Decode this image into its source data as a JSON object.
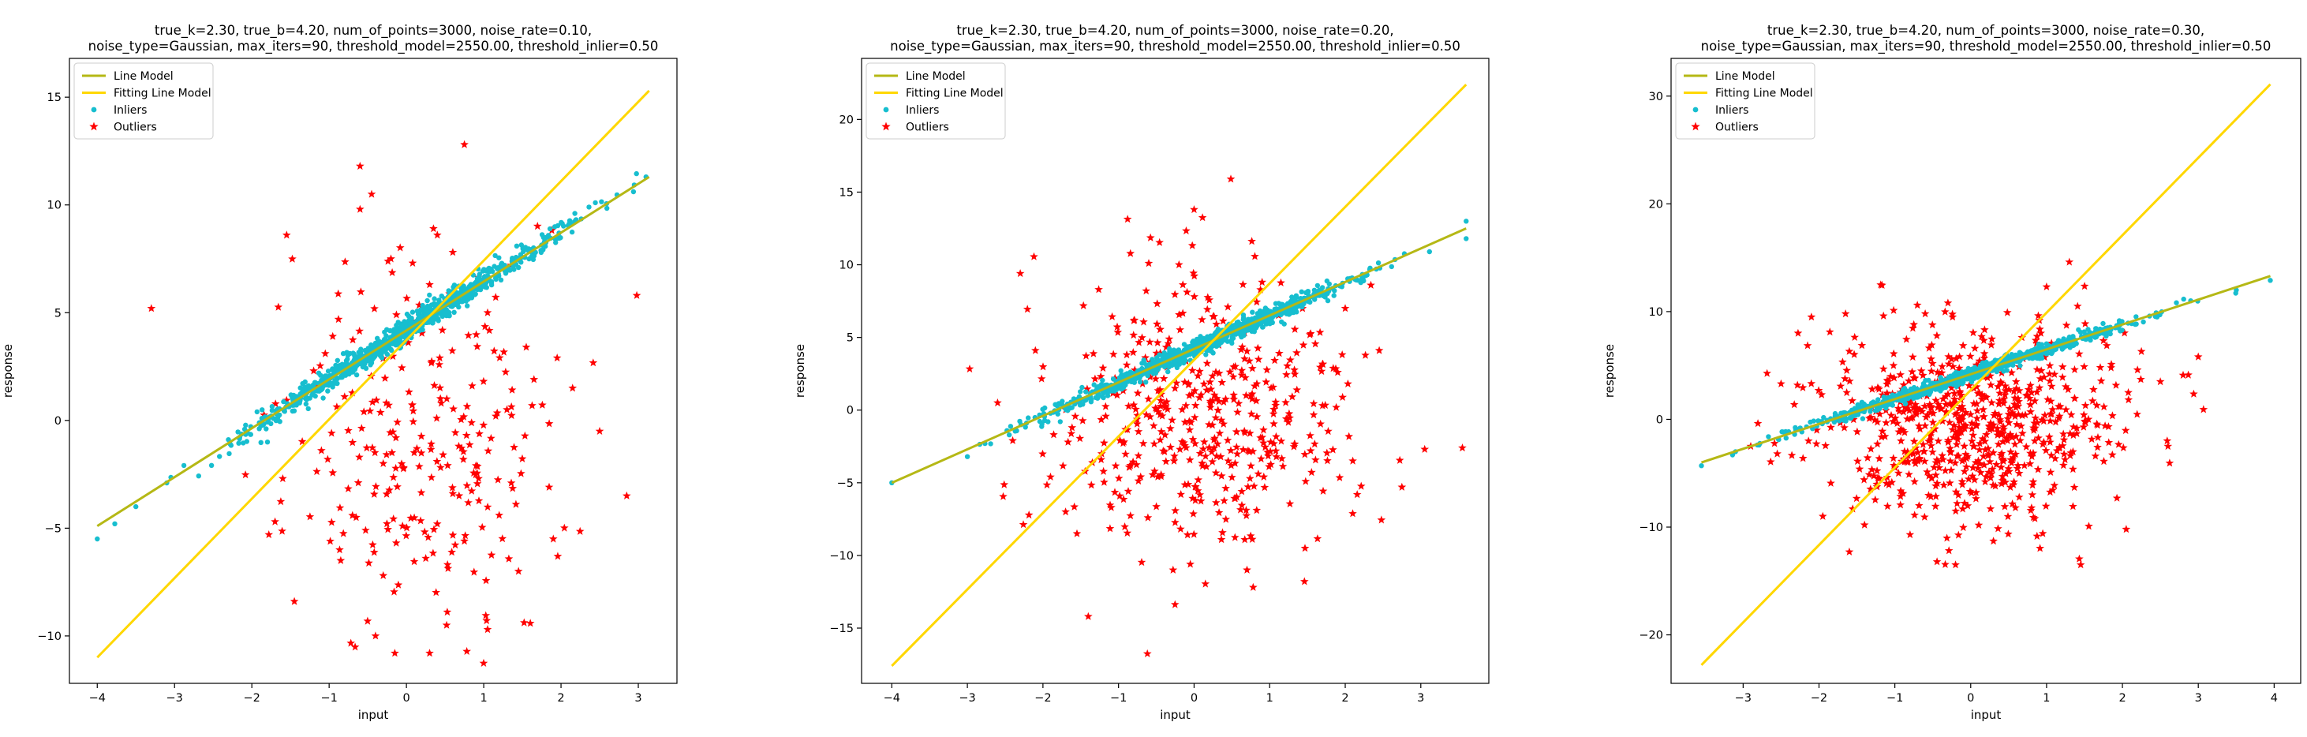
{
  "colors": {
    "line_model": "#b5b815",
    "fitting_line_model": "#ffd700",
    "inliers": "#17becf",
    "outliers": "#ff0000"
  },
  "chart_data": [
    {
      "type": "scatter",
      "title": [
        "true_k=2.30, true_b=4.20, num_of_points=3000, noise_rate=0.10,",
        "noise_type=Gaussian, max_iters=90, threshold_model=2550.00, threshold_inlier=0.50"
      ],
      "xlabel": "input",
      "ylabel": "response",
      "xlim": [
        -4.36,
        3.5
      ],
      "ylim": [
        -12.2,
        16.8
      ],
      "xticks": [
        -4,
        -3,
        -2,
        -1,
        0,
        1,
        2,
        3
      ],
      "xtick_labels": [
        "−4",
        "−3",
        "−2",
        "−1",
        "0",
        "1",
        "2",
        "3"
      ],
      "yticks": [
        -10,
        -5,
        0,
        5,
        10,
        15
      ],
      "ytick_labels": [
        "−10",
        "−5",
        "0",
        "5",
        "10",
        "15"
      ],
      "legend": {
        "position": "top-left",
        "entries": [
          "Line Model",
          "Fitting Line Model",
          "Inliers",
          "Outliers"
        ]
      },
      "series": [
        {
          "name": "Line Model",
          "kind": "line",
          "x": [
            -4.0,
            3.14
          ],
          "y": [
            -4.9,
            11.3
          ]
        },
        {
          "name": "Fitting Line Model",
          "kind": "line",
          "x": [
            -4.0,
            3.14
          ],
          "y": [
            -11.0,
            15.3
          ]
        },
        {
          "name": "Inliers",
          "kind": "scatter",
          "line": {
            "k": 2.3,
            "b": 4.2
          },
          "x_range": [
            -4.0,
            3.14
          ],
          "spread": 0.28,
          "count": 900,
          "extremes": [
            [
              -4.0,
              -5.5
            ],
            [
              3.1,
              11.3
            ],
            [
              -3.5,
              -4.0
            ],
            [
              -3.1,
              -2.9
            ]
          ]
        },
        {
          "name": "Outliers",
          "kind": "scatter",
          "marker": "star",
          "points": [
            [
              -3.3,
              5.2
            ],
            [
              -1.55,
              8.6
            ],
            [
              -0.6,
              11.8
            ],
            [
              0.75,
              12.8
            ],
            [
              -0.45,
              10.5
            ],
            [
              -0.6,
              9.8
            ],
            [
              0.35,
              8.9
            ],
            [
              0.4,
              8.6
            ],
            [
              2.98,
              5.8
            ],
            [
              -1.6,
              -2.7
            ],
            [
              -1.45,
              -8.4
            ],
            [
              -1.78,
              -5.3
            ],
            [
              -1.7,
              -4.7
            ],
            [
              -0.85,
              -6.5
            ],
            [
              -0.4,
              -10.0
            ],
            [
              -0.15,
              -10.8
            ],
            [
              0.3,
              -10.8
            ],
            [
              0.52,
              -9.5
            ],
            [
              1.05,
              -9.7
            ],
            [
              1.9,
              -5.5
            ],
            [
              2.85,
              -3.5
            ],
            [
              2.5,
              -0.5
            ],
            [
              2.15,
              1.5
            ],
            [
              1.55,
              3.4
            ],
            [
              1.95,
              2.9
            ],
            [
              -1.2,
              2.3
            ],
            [
              -1.05,
              3.1
            ],
            [
              -0.8,
              1.1
            ],
            [
              -0.3,
              -2.0
            ],
            [
              0.1,
              -1.5
            ],
            [
              0.6,
              -3.4
            ],
            [
              0.9,
              -2.1
            ],
            [
              1.3,
              0.5
            ],
            [
              1.65,
              1.9
            ],
            [
              -0.65,
              -4.5
            ],
            [
              0.25,
              -6.4
            ],
            [
              0.75,
              -5.6
            ],
            [
              1.2,
              -4.4
            ],
            [
              1.45,
              -7.0
            ],
            [
              -0.3,
              -7.2
            ],
            [
              -0.05,
              -4.9
            ],
            [
              0.45,
              0.8
            ],
            [
              0.85,
              1.6
            ],
            [
              -1.1,
              -1.4
            ],
            [
              -0.55,
              0.4
            ],
            [
              1.05,
              5.0
            ],
            [
              0.3,
              6.3
            ],
            [
              -0.2,
              7.5
            ],
            [
              1.35,
              7.2
            ],
            [
              0.6,
              7.8
            ]
          ],
          "extra_random": {
            "count": 220,
            "center": [
              0.25,
              -1.0
            ],
            "sd": [
              0.85,
              4.3
            ]
          }
        }
      ]
    },
    {
      "type": "scatter",
      "title": [
        "true_k=2.30, true_b=4.20, num_of_points=3000, noise_rate=0.20,",
        "noise_type=Gaussian, max_iters=90, threshold_model=2550.00, threshold_inlier=0.50"
      ],
      "xlabel": "input",
      "ylabel": "response",
      "xlim": [
        -4.4,
        3.9
      ],
      "ylim": [
        -18.8,
        24.2
      ],
      "xticks": [
        -4,
        -3,
        -2,
        -1,
        0,
        1,
        2,
        3
      ],
      "xtick_labels": [
        "−4",
        "−3",
        "−2",
        "−1",
        "0",
        "1",
        "2",
        "3"
      ],
      "yticks": [
        -15,
        -10,
        -5,
        0,
        5,
        10,
        15,
        20
      ],
      "ytick_labels": [
        "−15",
        "−10",
        "−5",
        "0",
        "5",
        "10",
        "15",
        "20"
      ],
      "legend": {
        "position": "top-left",
        "entries": [
          "Line Model",
          "Fitting Line Model",
          "Inliers",
          "Outliers"
        ]
      },
      "series": [
        {
          "name": "Line Model",
          "kind": "line",
          "x": [
            -4.0,
            3.6
          ],
          "y": [
            -5.0,
            12.5
          ]
        },
        {
          "name": "Fitting Line Model",
          "kind": "line",
          "x": [
            -4.0,
            3.6
          ],
          "y": [
            -17.6,
            22.4
          ]
        },
        {
          "name": "Inliers",
          "kind": "scatter",
          "line": {
            "k": 2.3,
            "b": 4.2
          },
          "x_range": [
            -4.0,
            3.6
          ],
          "spread": 0.28,
          "count": 900,
          "extremes": [
            [
              -4.0,
              -5.0
            ],
            [
              3.6,
              13.0
            ],
            [
              3.6,
              11.8
            ],
            [
              -3.0,
              -3.2
            ]
          ]
        },
        {
          "name": "Outliers",
          "kind": "scatter",
          "marker": "star",
          "points": [
            [
              -2.3,
              9.4
            ],
            [
              0.0,
              13.8
            ],
            [
              -1.4,
              -14.2
            ],
            [
              -0.05,
              -10.6
            ],
            [
              0.7,
              -11.0
            ],
            [
              3.55,
              -2.6
            ],
            [
              -1.55,
              -8.5
            ],
            [
              -1.7,
              -7.0
            ],
            [
              2.45,
              4.1
            ],
            [
              -2.4,
              -2.1
            ],
            [
              -2.1,
              4.1
            ],
            [
              2.1,
              -3.5
            ],
            [
              2.75,
              -5.3
            ],
            [
              1.9,
              2.6
            ],
            [
              -0.6,
              10.1
            ],
            [
              -0.2,
              10.0
            ],
            [
              0.9,
              8.8
            ],
            [
              2.0,
              7.0
            ],
            [
              -1.9,
              -4.6
            ],
            [
              -2.6,
              0.5
            ]
          ],
          "extra_random": {
            "count": 460,
            "center": [
              0.15,
              -0.5
            ],
            "sd": [
              0.95,
              4.5
            ]
          }
        }
      ]
    },
    {
      "type": "scatter",
      "title": [
        "true_k=2.30, true_b=4.20, num_of_points=3000, noise_rate=0.30,",
        "noise_type=Gaussian, max_iters=90, threshold_model=2550.00, threshold_inlier=0.50"
      ],
      "xlabel": "input",
      "ylabel": "response",
      "xlim": [
        -3.95,
        4.35
      ],
      "ylim": [
        -24.5,
        33.5
      ],
      "xticks": [
        -3,
        -2,
        -1,
        0,
        1,
        2,
        3,
        4
      ],
      "xtick_labels": [
        "−3",
        "−2",
        "−1",
        "0",
        "1",
        "2",
        "3",
        "4"
      ],
      "yticks": [
        -20,
        -10,
        0,
        10,
        20,
        30
      ],
      "ytick_labels": [
        "−20",
        "−10",
        "0",
        "10",
        "20",
        "30"
      ],
      "legend": {
        "position": "top-left",
        "entries": [
          "Line Model",
          "Fitting Line Model",
          "Inliers",
          "Outliers"
        ]
      },
      "series": [
        {
          "name": "Line Model",
          "kind": "line",
          "x": [
            -3.55,
            3.95
          ],
          "y": [
            -4.0,
            13.3
          ]
        },
        {
          "name": "Fitting Line Model",
          "kind": "line",
          "x": [
            -3.55,
            3.95
          ],
          "y": [
            -22.8,
            31.1
          ]
        },
        {
          "name": "Inliers",
          "kind": "scatter",
          "line": {
            "k": 2.3,
            "b": 4.2
          },
          "x_range": [
            -3.55,
            3.95
          ],
          "spread": 0.28,
          "count": 900,
          "extremes": [
            [
              -3.55,
              -4.3
            ],
            [
              3.95,
              12.9
            ],
            [
              -3.1,
              -3.0
            ],
            [
              2.9,
              11.0
            ]
          ]
        },
        {
          "name": "Outliers",
          "kind": "scatter",
          "marker": "star",
          "points": [
            [
              1.0,
              12.3
            ],
            [
              1.3,
              14.6
            ],
            [
              -1.6,
              -12.3
            ],
            [
              -0.8,
              -10.7
            ],
            [
              0.3,
              -11.3
            ],
            [
              -0.2,
              -13.5
            ],
            [
              0.95,
              -10.6
            ],
            [
              1.45,
              -13.5
            ],
            [
              2.05,
              -10.2
            ],
            [
              2.6,
              -2.5
            ],
            [
              2.5,
              3.5
            ],
            [
              3.0,
              5.8
            ],
            [
              2.8,
              4.1
            ],
            [
              -2.1,
              9.5
            ],
            [
              -1.65,
              9.8
            ],
            [
              -1.15,
              9.6
            ],
            [
              -0.6,
              9.8
            ],
            [
              -0.3,
              10.8
            ],
            [
              -0.75,
              8.8
            ],
            [
              -2.5,
              3.3
            ],
            [
              -2.9,
              -2.5
            ],
            [
              -2.55,
              -3.2
            ],
            [
              2.25,
              6.3
            ],
            [
              1.75,
              7.3
            ],
            [
              -1.95,
              -9.0
            ],
            [
              -1.4,
              -9.8
            ]
          ],
          "extra_random": {
            "count": 700,
            "center": [
              0.05,
              -0.5
            ],
            "sd": [
              0.95,
              4.4
            ]
          }
        }
      ]
    }
  ]
}
